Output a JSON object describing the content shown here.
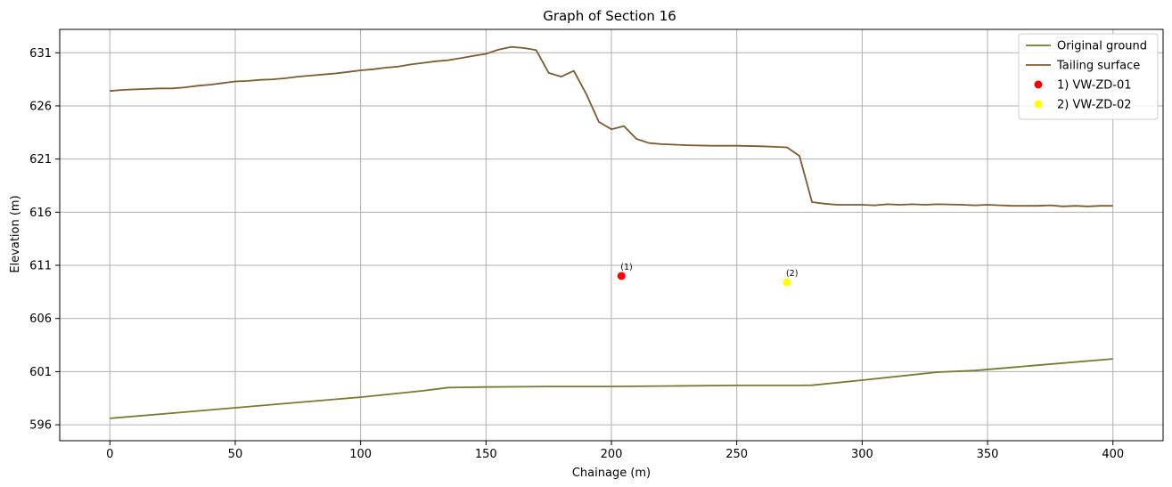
{
  "chart_data": {
    "type": "line",
    "title": "Graph of Section 16",
    "xlabel": "Chainage (m)",
    "ylabel": "Elevation (m)",
    "xlim": [
      -20,
      420
    ],
    "ylim": [
      594.5,
      633.2
    ],
    "xticks": [
      0,
      50,
      100,
      150,
      200,
      250,
      300,
      350,
      400
    ],
    "yticks": [
      596,
      601,
      606,
      611,
      616,
      621,
      626,
      631
    ],
    "grid": true,
    "legend_position": "top-right",
    "series": [
      {
        "name": "Original ground",
        "color": "#7a7a2e",
        "kind": "line",
        "x": [
          0,
          25,
          50,
          75,
          100,
          125,
          135,
          150,
          175,
          200,
          225,
          250,
          275,
          280,
          300,
          330,
          345,
          370,
          400
        ],
        "y": [
          596.6,
          597.1,
          597.6,
          598.1,
          598.6,
          599.2,
          599.5,
          599.55,
          599.6,
          599.6,
          599.65,
          599.7,
          599.7,
          599.72,
          600.2,
          600.95,
          601.1,
          601.6,
          602.2
        ]
      },
      {
        "name": "Tailing surface",
        "color": "#7f5a2e",
        "kind": "line",
        "x": [
          0,
          5,
          10,
          15,
          20,
          25,
          30,
          35,
          40,
          45,
          50,
          55,
          60,
          65,
          70,
          75,
          80,
          85,
          90,
          95,
          100,
          105,
          110,
          115,
          120,
          125,
          130,
          135,
          140,
          145,
          150,
          155,
          160,
          165,
          170,
          175,
          180,
          185,
          190,
          195,
          200,
          205,
          210,
          215,
          220,
          230,
          240,
          250,
          260,
          265,
          270,
          275,
          280,
          285,
          290,
          300,
          305,
          310,
          315,
          320,
          325,
          330,
          340,
          345,
          350,
          355,
          360,
          370,
          375,
          380,
          385,
          390,
          395,
          400
        ],
        "y": [
          627.4,
          627.5,
          627.55,
          627.6,
          627.65,
          627.65,
          627.75,
          627.9,
          628.0,
          628.15,
          628.3,
          628.35,
          628.45,
          628.5,
          628.6,
          628.75,
          628.85,
          628.95,
          629.05,
          629.2,
          629.35,
          629.45,
          629.6,
          629.7,
          629.9,
          630.05,
          630.2,
          630.3,
          630.5,
          630.7,
          630.9,
          631.3,
          631.55,
          631.45,
          631.25,
          629.1,
          628.75,
          629.3,
          627.1,
          624.5,
          623.8,
          624.1,
          622.9,
          622.5,
          622.4,
          622.3,
          622.25,
          622.25,
          622.2,
          622.15,
          622.1,
          621.3,
          616.95,
          616.8,
          616.7,
          616.7,
          616.65,
          616.75,
          616.7,
          616.75,
          616.7,
          616.75,
          616.7,
          616.65,
          616.7,
          616.65,
          616.6,
          616.6,
          616.65,
          616.55,
          616.6,
          616.55,
          616.6,
          616.6
        ]
      },
      {
        "name": "1) VW-ZD-01",
        "color": "#ff0000",
        "kind": "scatter",
        "x": [
          204
        ],
        "y": [
          610.0
        ],
        "annotation": "(1)"
      },
      {
        "name": "2) VW-ZD-02",
        "color": "#ffff00",
        "kind": "scatter",
        "x": [
          270
        ],
        "y": [
          609.4
        ],
        "annotation": "(2)"
      }
    ]
  }
}
